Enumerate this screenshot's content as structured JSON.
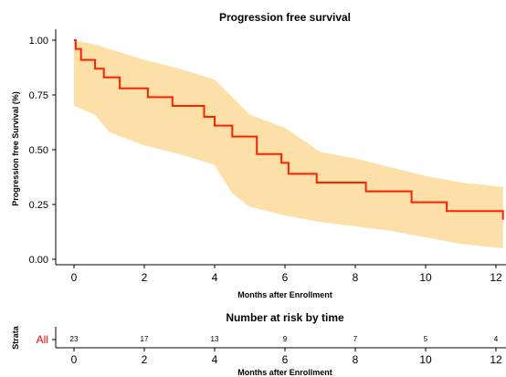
{
  "chart_data": [
    {
      "type": "line",
      "title": "Progression free survival",
      "xlabel": "Months after Enrollment",
      "ylabel": "Progression free Survival (%)",
      "xlim": [
        -0.6,
        12.2
      ],
      "ylim": [
        -0.03,
        1.05
      ],
      "xticks": [
        "0",
        "2",
        "4",
        "6",
        "8",
        "10",
        "12"
      ],
      "yticks": [
        "0.00",
        "0.25",
        "0.50",
        "0.75",
        "1.00"
      ],
      "grid": false,
      "colors": {
        "line": "#ff2200",
        "ci": "#fde0a8"
      },
      "series": [
        {
          "step": true,
          "x": [
            0,
            0.05,
            0.2,
            0.6,
            0.85,
            1.3,
            2.1,
            2.8,
            3.7,
            4.0,
            4.5,
            5.2,
            5.9,
            6.1,
            6.9,
            8.3,
            9.6,
            10.6,
            12.2
          ],
          "y": [
            1.0,
            0.96,
            0.91,
            0.87,
            0.83,
            0.78,
            0.74,
            0.7,
            0.65,
            0.61,
            0.56,
            0.48,
            0.44,
            0.39,
            0.35,
            0.31,
            0.26,
            0.22,
            0.18
          ]
        }
      ],
      "ci_band": {
        "x": [
          0,
          0.6,
          1.0,
          2.0,
          3.0,
          4.0,
          4.5,
          5.0,
          6.0,
          7.0,
          8.0,
          9.0,
          10.0,
          11.0,
          12.2
        ],
        "upper": [
          1.0,
          0.98,
          0.96,
          0.91,
          0.87,
          0.82,
          0.74,
          0.66,
          0.6,
          0.49,
          0.46,
          0.42,
          0.38,
          0.35,
          0.33
        ],
        "lower": [
          0.7,
          0.66,
          0.58,
          0.52,
          0.48,
          0.43,
          0.3,
          0.24,
          0.2,
          0.17,
          0.15,
          0.13,
          0.1,
          0.07,
          0.05
        ]
      }
    },
    {
      "type": "table",
      "title": "Number at risk by time",
      "xlabel": "Months after Enrollment",
      "ylabel": "Strata",
      "strata": [
        "All"
      ],
      "x": [
        0,
        2,
        4,
        6,
        8,
        10,
        12
      ],
      "values": [
        23,
        17,
        13,
        9,
        7,
        5,
        4
      ],
      "xticks": [
        "0",
        "2",
        "4",
        "6",
        "8",
        "10",
        "12"
      ]
    }
  ]
}
